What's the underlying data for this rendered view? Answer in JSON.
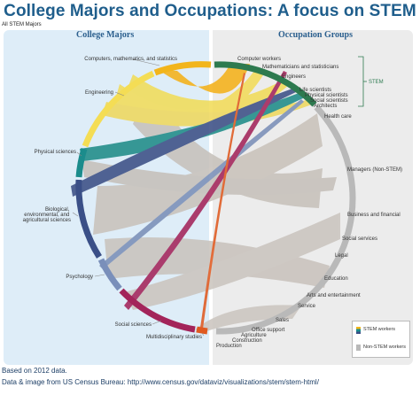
{
  "title": "College Majors and Occupations: A focus on STEM",
  "filter_label": "All STEM Majors",
  "left_panel_title": "College Majors",
  "right_panel_title": "Occupation Groups",
  "majors": [
    "Computers, mathematics, and statistics",
    "Engineering",
    "Physical sciences",
    "Biological, environmental, and agricultural sciences",
    "Psychology",
    "Social sciences",
    "Multidisciplinary studies"
  ],
  "occupations": [
    "Computer workers",
    "Mathematicians and statisticians",
    "Engineers",
    "Life scientists",
    "Physical scientists",
    "Social scientists",
    "Architects",
    "Health care",
    "Managers (Non-STEM)",
    "Business and financial",
    "Social services",
    "Legal",
    "Education",
    "Arts and entertainment",
    "Service",
    "Sales",
    "Office support",
    "Agriculture",
    "Construction",
    "Production"
  ],
  "stem_bracket_label": "STEM",
  "legend": {
    "stem": "STEM workers",
    "non_stem": "Non-STEM workers"
  },
  "colors": {
    "computers": "#f2b51b",
    "engineering": "#f4dd55",
    "physical": "#1b8c8c",
    "bio": "#3a4f87",
    "psychology": "#7a8fba",
    "social": "#a3245a",
    "multi": "#e05a20",
    "occupation": "#b9b9b9",
    "stem_green": "#2d7a4f"
  },
  "footer": {
    "line1": "Based on 2012 data.",
    "line2": "Data & image from US Census Bureau: http://www.census.gov/dataviz/visualizations/stem/stem-html/"
  }
}
